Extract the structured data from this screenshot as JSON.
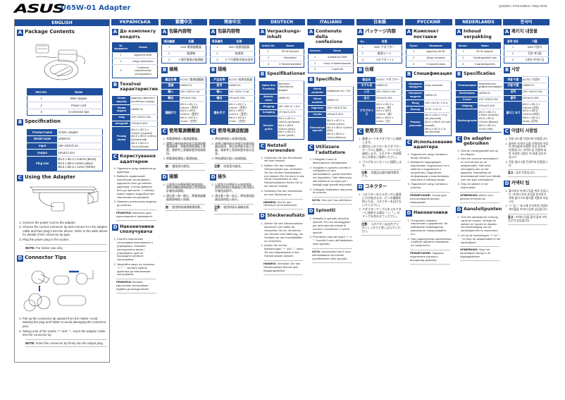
{
  "header": {
    "logo": "ASUS",
    "title": "U65W-01 Adapter",
    "edition": "Q15381 / First Edition / May 2019"
  },
  "colors": {
    "accent": "#1f4e9c",
    "title": "#1f57a6"
  },
  "columns": [
    {
      "lang": "ENGLISH",
      "a": "Package Contents",
      "a_head": [
        "Item No.",
        "Name"
      ],
      "a_rows": [
        [
          "1",
          "65W Adapter"
        ],
        [
          "2",
          "Power cord"
        ],
        [
          "3",
          "3 connector tips"
        ]
      ],
      "b": "Specification",
      "b_rows": [
        [
          "Product name",
          "AC/DC Adapter"
        ],
        [
          "Model name",
          "U65W-01"
        ],
        [
          "Input",
          "100~240V/1.5A"
        ],
        [
          "Output",
          "19Vdc/3.42A"
        ],
        [
          "Plug size",
          "Ø4.0 x Ø1.2 x 9.8mm (Black)\nØ4.5 x Ø0.6 x10mm (Blue)\nØ5.5 x Ø2.5 x 11mm (White)"
        ]
      ],
      "c": "Using the Adapter",
      "c_steps": [
        "Connect the power cord to the adapter.",
        "Choose the correct connector tip and connect it to the adapter cable and then plug it into the device. Refer to the table above for details of the connector tip type.",
        "Plug the power plug to the socket."
      ],
      "c_note_label": "NOTE:",
      "c_note": "For indoor use only.",
      "d": "Connector Tips",
      "d_steps": [
        "Pull up the connector tip upward from the holder. Avoid twisting the plug and holder to avoid damaging the connector pins.",
        "Taking note of the marks \"+\" and \"-\", insert the adapter cable into the connector tip."
      ],
      "d_note_label": "NOTE:",
      "d_note": "Insert the connector tip firmly into the output plug."
    },
    {
      "lang": "УКРАЇНСЬКА",
      "a": "До комплекту входять",
      "a_head": [
        "№ предмета",
        "Назва"
      ],
      "a_rows": [
        [
          "1",
          "Адаптер 65W"
        ],
        [
          "2",
          "Шнур живлення"
        ],
        [
          "3",
          "3 змінних наконечники сполучувача"
        ]
      ],
      "b": "Технічні характеристики",
      "b_rows": [
        [
          "Назва виробу",
          "Адаптер змінного/ постійного струму"
        ],
        [
          "Назва моделі",
          "U65W-01"
        ],
        [
          "вхід",
          "100~240V/1.5A"
        ],
        [
          "вихідний",
          "19Vdc/3.42A"
        ],
        [
          "Розмір вилки",
          "Ø4.0 x Ø1.2 x 9.8mm (Чорний)\nØ4.5 x Ø0.6 x10mm (Блакитний)\nØ5.5 x Ø2.5 x 11mm (Білий)"
        ]
      ],
      "c": "Користування адаптером",
      "c_steps": [
        "Підключіть шнур живлення до адаптера.",
        "Виберіть правильний наконечник сполучувача і підключіть його до кабелю адаптера, а потім увімкніть його до пристрою. У таблиці нижче подано подробиці про наконечник сполучувача.",
        "Увімкніть штепсельну виделку до розетки."
      ],
      "c_note_label": "ПРИМІТКИ:",
      "c_note": "Виключно для користування в приміщенні.",
      "d": "Наконечники сполучувача",
      "d_steps": [
        "Зтягніть наконечник сполучувача вертикально з утримувача. Уникайте перекручення вилки і утримувача, щоб не пошкодити контакти сполучувача.",
        "Звертайте увагу на позначки \"+\" і \"-\", вставте кабель адаптера до наконечника сполучувача."
      ],
      "d_note_label": "ПРИМІТКИ:",
      "d_note": "Вставте наконечник сполучувача надійно до виходу вилки."
    },
    {
      "lang": "繁體中文",
      "a": "包裝內容物",
      "a_head": [
        "項目編號",
        "名稱"
      ],
      "a_rows": [
        [
          "1",
          "65W 電源變壓器"
        ],
        [
          "2",
          "電源線"
        ],
        [
          "3",
          "3 個可更換式接頭組"
        ]
      ],
      "b": "規格",
      "b_rows": [
        [
          "產品名稱",
          "AC/DC 電源變壓器"
        ],
        [
          "型號",
          "U65W-01"
        ],
        [
          "輸入",
          "100~240V/1.5A"
        ],
        [
          "輸出",
          "19Vdc/3.42A"
        ],
        [
          "插頭尺寸",
          "Ø4.0 x Ø1.2 x 9.8mm（黑色）\nØ4.5 x Ø0.6 x10mm（藍色）\nØ5.5 x Ø2.5 x 11mm（白色）"
        ]
      ],
      "c": "使用電源變壓器",
      "c_steps": [
        "將電源線接入電源變壓器。",
        "選擇正確的接頭並接至電源變壓器連接線，然後再將插頭插入裝置。請參考上表獲取更多接頭資訊。",
        "將電源插頭插入電源插座。"
      ],
      "c_note_label": "註：",
      "c_note": "僅限室內使用。",
      "d": "接頭",
      "d_steps": [
        "以直角方向將接頭從座架拔起，避免扭轉插頭和座架以免對接頭針腳造成損壞。",
        "請注意＋和－標示，將電源變壓器連接線插入接頭。"
      ],
      "d_note_label": "註：",
      "d_note": "使用時接頭請確實插緊。"
    },
    {
      "lang": "简体中文",
      "a": "包装内容物",
      "a_head": [
        "项目编号",
        "名称"
      ],
      "a_rows": [
        [
          "1",
          "65W 电源适配器"
        ],
        [
          "2",
          "电源线"
        ],
        [
          "3",
          "3 个可更换式接头组合"
        ]
      ],
      "b": "规格",
      "b_rows": [
        [
          "产品名称",
          "AC/DC 电源适配器"
        ],
        [
          "型号",
          "U65W-01"
        ],
        [
          "输入",
          "100~240V /1.5A"
        ],
        [
          "输出",
          "19Vdc/3.42A"
        ],
        [
          "插头尺寸",
          "Ø4.0 x Ø1.2 x 9.8mm（黑色）\nØ4.5 x Ø0.6 x10mm（蓝色）\nØ5.5 x Ø2.5 x 11mm（白色）"
        ]
      ],
      "c": "使用电源适配器",
      "c_steps": [
        "将电源线接入电源适配器。",
        "选择正确的接头并接至电源适配器连接线，然后再将插头插入设备。请参考上表获取更多接头信息。",
        "将电源插头插入电源插座。"
      ],
      "c_note_label": "注意：",
      "c_note": "仅限室内使用。",
      "d": "接头",
      "d_steps": [
        "以直角方向将接头从座架拔起，避免扭转插头和座架以免对接头针脚造成损坏。",
        "请注意＋和－标示，将电源适配器连接线插入接头。"
      ],
      "d_note_label": "注意：",
      "d_note": "使用时接头请确实插紧。"
    },
    {
      "lang": "DEUTSCH",
      "a": "Verpackungs-inhalt",
      "a_head": [
        "Artikel-Nr.",
        "Name"
      ],
      "a_rows": [
        [
          "1",
          "65 W Netzteil"
        ],
        [
          "2",
          "Netzkabel"
        ],
        [
          "3",
          "3 Steckeraufsätze"
        ]
      ],
      "b": "Spezifikationen",
      "b_rows": [
        [
          "Name des Produkts",
          "Wechsel-/ Gleichstrom-Adapter"
        ],
        [
          "Modell-name",
          "U65W-01"
        ],
        [
          "Eingang",
          "100~240 V/ 1,5 A"
        ],
        [
          "Ausgang",
          "19 Vdc/3,42 A"
        ],
        [
          "Stecker-größe",
          "Ø4,0 x Ø1,2 x 9,8mm (schwarz)\nØ4,5 x Ø0,6 x10mm (blau)\nØ5,5 x Ø2,5 x 11mm (weiß)"
        ]
      ],
      "c": "Netzteil verwenden",
      "c_steps": [
        "Verbinden Sie das Stromkabel mit dem Netzteil.",
        "Wählen Sie den richtigen Steckeraufsatz aus, verbinden Sie ihn mit dem Netzteilkabel und stecken Sie ihn dann in das Gerät. Einzelheiten zu den Steckeraufsätzen finden Sie in der oberen Tabelle.",
        "Schließen Sie den Netzstecker an eine Steckdose an."
      ],
      "c_note_label": "HINWEIS:",
      "c_note": "Nur für den Gebrauch im Innenbereich.",
      "d": "Steckeraufsätze",
      "d_steps": [
        "Ziehen Sie den Steckeraufsatz senkrecht vom Halter ab. Vermeiden Sie ein Verdrehen von Stecker und Halterung, um Schäden an den Kontaktstiften zu vermeiden.",
        "Achten Sie auf die Markierungen \"+\" und \"-\", wenn Sie das Adapterkabel in den Steckeraufsatz stecken."
      ],
      "d_note_label": "HINWEIS:",
      "d_note": "Verbinden Sie den Steckeraufsatz fest mit dem Ausgangsstecker."
    },
    {
      "lang": "ITALIANO",
      "a": "Contenuto della confezione",
      "a_head": [
        "Articolo",
        "Nome"
      ],
      "a_rows": [
        [
          "1",
          "Adattatore 65W"
        ],
        [
          "2",
          "Cavo di alimentazione"
        ],
        [
          "3",
          "3 spinotti"
        ]
      ],
      "b": "Specifiche",
      "b_rows": [
        [
          "Nome prodotto",
          "Adattatore AC / DC"
        ],
        [
          "Nome modello",
          "U65W-01"
        ],
        [
          "Ingresso",
          "100~240V/1.5A"
        ],
        [
          "Uscita",
          "19Vdc/3.42A"
        ],
        [
          "Dimensioni spinotti",
          "Ø4.0 x Ø1.2 x 9.8mm (Nero)\nØ4.5 x Ø0.6 x10mm (Blu)\nØ5.5 x Ø2.5 x 11mm (Bianco)"
        ]
      ],
      "c": "Utilizzare l'adattatore",
      "c_steps": [
        "Collegate il cavo di alimentazione all'adattatore.",
        "Scegliete lo spinotto corretto e collegatelo al cavo dell'adattatore, quindi inseritelo nel dispositivo. Fate riferimento alla tabella di cui sopra per i dettagli sugli spinotti disponibili.",
        "Collegate l'adattatore alla presa di corrente."
      ],
      "c_note_label": "NOTA:",
      "c_note": "Solo per l'uso all'interno.",
      "d": "Spinotti",
      "d_steps": [
        "Estraete lo spinotto dal porta spinotti. Per non danneggiare i pin dello spinotto evitate di torcere il connettore e il porta spinotti.",
        "Prendendo nota dei segni \"+\" e \"-\" inserite il cavo dell'adattatore nello spinotto."
      ],
      "d_note_label": "NOTA:",
      "d_note": "Assicuratevi che il cavo dell'adattatore sia inserito correttamente nello spinotto."
    },
    {
      "lang": "日本語",
      "a": "パッケージ内容",
      "a_head": [
        "No.",
        "名前"
      ],
      "a_rows": [
        [
          "1",
          "65W アダプター"
        ],
        [
          "2",
          "電源コード"
        ],
        [
          "3",
          "コネクター× 3"
        ]
      ],
      "b": "仕様",
      "b_rows": [
        [
          "製品名",
          "AC/DC アダプター"
        ],
        [
          "モデル名",
          "U65W-01"
        ],
        [
          "入力",
          "100~240V/1.5A"
        ],
        [
          "出力",
          "19Vdc/3.42A"
        ],
        [
          "プラグサイズ",
          "Ø4.0 x Ø1.2 x 9.8mm（黒）\nØ4.5 x Ø0.6 x10mm（青）\nØ5.5 x Ø2.5 x 11mm（白）"
        ]
      ],
      "c": "使用方法",
      "c_steps": [
        "電源コードをアダプターに接続します。",
        "適切なコネクターをアダプターケーブルに接続し、デバイスに接続します。コネクターの詳細は上の表をご参照ください。",
        "プラグをコンセントに接続します。"
      ],
      "c_note_label": "注意：",
      "c_note": "本製品は屋内使用専用です。",
      "d": "コネクター",
      "d_steps": [
        "コネクターをホルダーから垂直に引き抜きます。ピンの損傷を防ぐため、コネクターを回さないでください。",
        "アダプターケーブルをコネクターに接続する際は「+」「-」のマークを合わせてください。"
      ],
      "d_note_label": "注意：",
      "d_note": "コネクターは出力プラグにしっかりと差し込んでください。"
    },
    {
      "lang": "РУССКИЙ",
      "a": "Комплект поставки",
      "a_head": [
        "Пункт",
        "Название"
      ],
      "a_rows": [
        [
          "1",
          "Адаптер 65 Вт"
        ],
        [
          "2",
          "Шнур питания"
        ],
        [
          "3",
          "3 наконечника"
        ]
      ],
      "b": "Спецификация",
      "b_rows": [
        [
          "Название продукта",
          "Блок питания"
        ],
        [
          "Название модели",
          "U65W-01"
        ],
        [
          "Вход",
          "100~240 В / 1.5 А"
        ],
        [
          "Выход",
          "19 В / 3.42 А"
        ],
        [
          "Размер разъема",
          "Ø4.0 x Ø1.2 x 9.8 мм (черный)\nØ4.5 x Ø0.6 x10 мм (синий)\nØ5.5 x Ø2.5 x 11 мм (белый)"
        ]
      ],
      "c": "Использование адаптера",
      "c_steps": [
        "Подключите шнур питания к блоку питания.",
        "Выберите подходящий наконечник, подключите его к кабелю и подключите к устройству. Подробную информацию о наконечниках смотрите в таблице выше.",
        "Подключите шнур питания к розетке."
      ],
      "c_note_label": "ПРИМЕЧАНИЕ:",
      "c_note": "Только для использования внутри помещений.",
      "d": "Наконечники",
      "d_steps": [
        "Осторожно снимите наконечник с держателя. Во избежание повреждения разъема не поворачивайте его.",
        "При подключении наконечника к кабелю обратите внимание на полярность."
      ],
      "d_note_label": "ПРИМЕЧАНИЕ:",
      "d_note": "Надежно подключите разъем к выходному разъему."
    },
    {
      "lang": "NEDERLANDS",
      "a": "Inhoud verpakking",
      "a_head": [
        "Itemnr.",
        "Naam"
      ],
      "a_rows": [
        [
          "1",
          "65 W adapter"
        ],
        [
          "2",
          "Voedingskabel aan"
        ],
        [
          "3",
          "3 aansluitpunten"
        ]
      ],
      "b": "Specificaties",
      "b_rows": [
        [
          "Productnaam",
          "Wisselstroom/ gelijkstroomadapter"
        ],
        [
          "Modelnaam",
          "U65W-01"
        ],
        [
          "Invoer",
          "100~240V/1.5A"
        ],
        [
          "Uitgang",
          "19Vdc/3.42A"
        ],
        [
          "Stekkergrootte",
          "Ø4.0 x Ø1.2 x 9.8mm (Zwarte)\nØ4.5 x Ø0.6 x10mm (Blauw)\nØ5.5 x Ø2.5 x 11mm (Wit)"
        ]
      ],
      "c": "De adapter gebruiken",
      "c_steps": [
        "Sluit de voedingskabel aan op de adapter.",
        "Kies het correcte aansluitpunt en sluit dit aan op de adapterkabel. Sluit deze vervolgens aan op het apparaat. Raadpleeg de bovenstaande tabel voor details over het type aansluitpunt.",
        "Stop de stekker in het stopcontact."
      ],
      "c_note_label": "OPMERKING:",
      "c_note": "Alleen voor gebruik binnenshuis.",
      "d": "Aansluitpunten",
      "d_steps": [
        "Trek het aansluitpunt omhoog vanaf de houder. Vermijd de stekker en houder te draaien om beschadiging van de aansluitpennen te voorkomen.",
        "Let op de markeringen \"+\" en \"-\" en stop de adapterkabel in het aansluitpunt."
      ],
      "d_note_label": "OPMERKING:",
      "d_note": "Stop het aansluitpunt stevig in de uitgangsstekker."
    },
    {
      "lang": "한국어",
      "a": "패키지 내용물",
      "a_head": [
        "품목 번호",
        "이름"
      ],
      "a_rows": [
        [
          "1",
          "65W 어댑터"
        ],
        [
          "2",
          "전원 케이블"
        ],
        [
          "3",
          "3개의 커넥터 팁"
        ]
      ],
      "b": "사양",
      "b_rows": [
        [
          "제품 이름",
          "AC/DC 어댑터"
        ],
        [
          "모델 이름",
          "U65W-01"
        ],
        [
          "입력",
          "100~240V/1.5A"
        ],
        [
          "출력",
          "19Vdc/3.42A"
        ],
        [
          "플러그 크기",
          "Ø4.0 x Ø1.2 x 9.8mm (검정)\nØ4.5 x Ø0.6 x10mm (파랑)\nØ5.5 x Ø2.5 x 11mm (흰색)"
        ]
      ],
      "c": "어댑터 사용법",
      "c_steps": [
        "전원 코드를 어댑터에 연결합니다.",
        "올바른 커넥터 팁을 선택하여 어댑터 케이블에 연결한 다음 장치에 연결합니다. 커넥터 팁 유형에 대한 자세한 내용은 위 표를 참조하십시오.",
        "전원 플러그를 콘센트에 연결합니다."
      ],
      "c_note_label": "참고 :",
      "c_note": "실내 전용입니다.",
      "d": "커넥터 팁",
      "d_steps": [
        "홀더에서 커넥터 팁을 위로 당깁니다. 커넥터 핀의 손상을 방지하기 위해 플러그와 홀더를 비틀지 마십시오.",
        "\"+\" 및 \"-\" 표시에 유의하여 어댑터 케이블을 커넥터 팁에 삽입합니다."
      ],
      "d_note_label": "참고 :",
      "d_note": "커넥터 팁을 출력 플러그에 단단히 삽입합니다."
    }
  ]
}
